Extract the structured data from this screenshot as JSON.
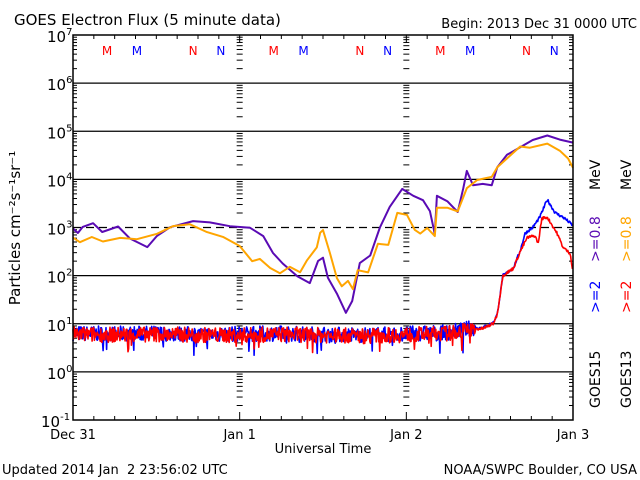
{
  "chart_data": {
    "type": "line",
    "title": "GOES Electron Flux (5 minute data)",
    "begin_label": "Begin: 2013 Dec 31 0000 UTC",
    "xlabel": "Universal Time",
    "ylabel": "Particles cm⁻²s⁻¹sr⁻¹",
    "y_scale": "log10",
    "ylim_exponent": [
      -1,
      7
    ],
    "y_tick_labels": [
      {
        "base": "10",
        "exp": "7",
        "value": 7
      },
      {
        "base": "10",
        "exp": "6",
        "value": 6
      },
      {
        "base": "10",
        "exp": "5",
        "value": 5
      },
      {
        "base": "10",
        "exp": "4",
        "value": 4
      },
      {
        "base": "10",
        "exp": "3",
        "value": 3
      },
      {
        "base": "10",
        "exp": "2",
        "value": 2
      },
      {
        "base": "10",
        "exp": "1",
        "value": 1
      },
      {
        "base": "10",
        "exp": "0",
        "value": 0
      },
      {
        "base": "10",
        "exp": "-1",
        "value": -1
      }
    ],
    "x_unit": "hours since begin",
    "xlim": [
      0,
      72
    ],
    "x_tick_labels": [
      {
        "label": "Dec 31",
        "hour": 0
      },
      {
        "label": "Jan 1",
        "hour": 24
      },
      {
        "label": "Jan 2",
        "hour": 48
      },
      {
        "label": "Jan 3",
        "hour": 72
      }
    ],
    "threshold_line_exponent": 3,
    "markers": [
      {
        "label": "M",
        "color": "#ff0000",
        "hour": 4.9
      },
      {
        "label": "M",
        "color": "#0000ff",
        "hour": 9.2
      },
      {
        "label": "N",
        "color": "#ff0000",
        "hour": 17.3
      },
      {
        "label": "N",
        "color": "#0000ff",
        "hour": 21.3
      },
      {
        "label": "M",
        "color": "#ff0000",
        "hour": 28.9
      },
      {
        "label": "M",
        "color": "#0000ff",
        "hour": 33.2
      },
      {
        "label": "N",
        "color": "#ff0000",
        "hour": 41.3
      },
      {
        "label": "N",
        "color": "#0000ff",
        "hour": 45.3
      },
      {
        "label": "M",
        "color": "#ff0000",
        "hour": 52.9
      },
      {
        "label": "M",
        "color": "#0000ff",
        "hour": 57.2
      },
      {
        "label": "N",
        "color": "#ff0000",
        "hour": 65.3
      },
      {
        "label": "N",
        "color": "#0000ff",
        "hour": 69.3
      }
    ],
    "series": [
      {
        "name": "GOES15 >=0.8 MeV",
        "color": "#5a0ab4",
        "noisy": false,
        "points": [
          [
            0,
            2.98
          ],
          [
            0.7,
            2.88
          ],
          [
            1.4,
            3.02
          ],
          [
            2.9,
            3.08
          ],
          [
            4.2,
            2.9
          ],
          [
            6.5,
            3.02
          ],
          [
            8.2,
            2.77
          ],
          [
            10.7,
            2.6
          ],
          [
            12.1,
            2.83
          ],
          [
            14,
            3.0
          ],
          [
            17.3,
            3.12
          ],
          [
            19.7,
            3.1
          ],
          [
            22.6,
            3.04
          ],
          [
            25.5,
            2.98
          ],
          [
            27.4,
            2.83
          ],
          [
            28.8,
            2.46
          ],
          [
            30.2,
            2.25
          ],
          [
            32.3,
            2.0
          ],
          [
            34.1,
            1.85
          ],
          [
            35.3,
            2.31
          ],
          [
            36,
            2.37
          ],
          [
            36.7,
            1.96
          ],
          [
            38,
            1.62
          ],
          [
            39.3,
            1.23
          ],
          [
            40.2,
            1.48
          ],
          [
            41.3,
            2.25
          ],
          [
            42.8,
            2.42
          ],
          [
            44.2,
            3.0
          ],
          [
            45.6,
            3.42
          ],
          [
            47.4,
            3.79
          ],
          [
            49,
            3.67
          ],
          [
            50.4,
            3.56
          ],
          [
            51.4,
            3.35
          ],
          [
            52.1,
            2.88
          ],
          [
            52.4,
            3.67
          ],
          [
            53.9,
            3.56
          ],
          [
            55.4,
            3.31
          ],
          [
            56.2,
            3.83
          ],
          [
            56.7,
            4.17
          ],
          [
            57.6,
            3.88
          ],
          [
            59,
            3.92
          ],
          [
            60.3,
            3.88
          ],
          [
            61.1,
            4.25
          ],
          [
            62.5,
            4.52
          ],
          [
            64.4,
            4.67
          ],
          [
            66.2,
            4.81
          ],
          [
            68.3,
            4.92
          ],
          [
            70.1,
            4.83
          ],
          [
            72,
            4.77
          ]
        ]
      },
      {
        "name": "GOES13 >=0.8 MeV",
        "color": "#ffa500",
        "noisy": false,
        "points": [
          [
            0,
            2.79
          ],
          [
            1,
            2.71
          ],
          [
            2.7,
            2.81
          ],
          [
            4.3,
            2.71
          ],
          [
            6.8,
            2.79
          ],
          [
            9.2,
            2.77
          ],
          [
            12.1,
            2.88
          ],
          [
            14.4,
            3.02
          ],
          [
            16.8,
            3.06
          ],
          [
            19.3,
            2.92
          ],
          [
            21.6,
            2.79
          ],
          [
            24,
            2.63
          ],
          [
            25.8,
            2.31
          ],
          [
            26.9,
            2.35
          ],
          [
            28.4,
            2.17
          ],
          [
            29.8,
            2.06
          ],
          [
            31.2,
            2.17
          ],
          [
            32.7,
            2.06
          ],
          [
            33.7,
            2.31
          ],
          [
            35.1,
            2.58
          ],
          [
            35.6,
            2.88
          ],
          [
            36,
            2.94
          ],
          [
            37,
            2.46
          ],
          [
            38,
            1.96
          ],
          [
            38.7,
            1.79
          ],
          [
            39.6,
            1.9
          ],
          [
            40.3,
            1.73
          ],
          [
            41,
            2.1
          ],
          [
            42.5,
            2.06
          ],
          [
            43.9,
            2.67
          ],
          [
            45.4,
            2.63
          ],
          [
            46.7,
            3.29
          ],
          [
            48.1,
            3.25
          ],
          [
            49.2,
            2.94
          ],
          [
            50,
            2.88
          ],
          [
            51,
            2.98
          ],
          [
            52.1,
            2.83
          ],
          [
            52.4,
            3.4
          ],
          [
            53.9,
            3.4
          ],
          [
            55.4,
            3.35
          ],
          [
            56.7,
            3.83
          ],
          [
            58.2,
            3.98
          ],
          [
            60.3,
            4.04
          ],
          [
            61.1,
            4.25
          ],
          [
            64.4,
            4.67
          ],
          [
            65.8,
            4.67
          ],
          [
            68.3,
            4.75
          ],
          [
            70.1,
            4.6
          ],
          [
            71.3,
            4.44
          ],
          [
            72,
            4.23
          ]
        ]
      },
      {
        "name": "GOES15 >=2 MeV",
        "color": "#0000ff",
        "noisy": true,
        "points": [
          [
            0,
            0.8
          ],
          [
            6,
            0.79
          ],
          [
            12,
            0.8
          ],
          [
            18,
            0.78
          ],
          [
            24,
            0.79
          ],
          [
            30,
            0.8
          ],
          [
            36,
            0.78
          ],
          [
            42,
            0.77
          ],
          [
            48,
            0.79
          ],
          [
            54,
            0.82
          ],
          [
            57,
            0.9
          ],
          [
            59,
            0.92
          ],
          [
            60.5,
            1.02
          ],
          [
            61.1,
            1.2
          ],
          [
            61.9,
            2.0
          ],
          [
            63.4,
            2.15
          ],
          [
            64.4,
            2.52
          ],
          [
            65.1,
            2.88
          ],
          [
            66.2,
            3.0
          ],
          [
            67.2,
            3.21
          ],
          [
            68.3,
            3.58
          ],
          [
            69.4,
            3.31
          ],
          [
            70.8,
            3.19
          ],
          [
            72,
            3.04
          ]
        ]
      },
      {
        "name": "GOES13 >=2 MeV",
        "color": "#ff0000",
        "noisy": true,
        "points": [
          [
            0,
            0.78
          ],
          [
            6,
            0.77
          ],
          [
            12,
            0.78
          ],
          [
            18,
            0.77
          ],
          [
            24,
            0.76
          ],
          [
            30,
            0.78
          ],
          [
            36,
            0.76
          ],
          [
            42,
            0.75
          ],
          [
            48,
            0.77
          ],
          [
            54,
            0.8
          ],
          [
            57,
            0.88
          ],
          [
            59,
            0.9
          ],
          [
            60.5,
            1.0
          ],
          [
            61.1,
            1.2
          ],
          [
            61.9,
            2.0
          ],
          [
            63.4,
            2.15
          ],
          [
            64.4,
            2.5
          ],
          [
            65.4,
            2.79
          ],
          [
            66.5,
            2.83
          ],
          [
            67,
            2.67
          ],
          [
            67.5,
            3.19
          ],
          [
            68.3,
            3.21
          ],
          [
            69.7,
            2.88
          ],
          [
            70.6,
            2.58
          ],
          [
            71.6,
            2.46
          ],
          [
            72,
            2.06
          ]
        ]
      }
    ],
    "legend": {
      "placement": "right-vertical",
      "goes15": {
        "sat": "GOES15",
        "e2": ">=2",
        "e08": ">=0.8",
        "unit": "MeV"
      },
      "goes13": {
        "sat": "GOES13",
        "e2": ">=2",
        "e08": ">=0.8",
        "unit": "MeV"
      }
    }
  },
  "footer": {
    "updated": "Updated 2014 Jan  2 23:56:02 UTC",
    "credit": "NOAA/SWPC Boulder, CO USA"
  }
}
